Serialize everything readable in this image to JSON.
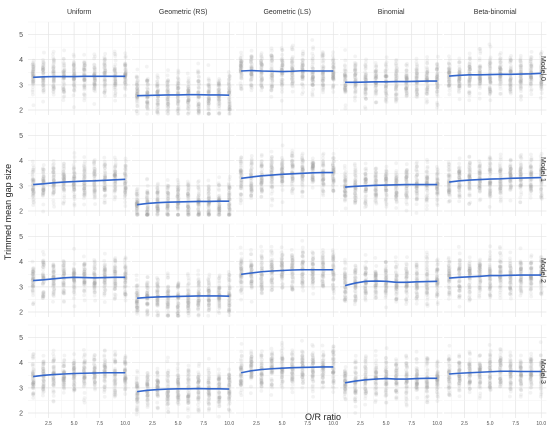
{
  "chart_data": {
    "type": "scatter",
    "layout": "facet-grid",
    "xlabel": "O/R ratio",
    "ylabel": "Trimmed mean gap size",
    "columns": [
      "Uniform",
      "Geometric (RS)",
      "Geometric (LS)",
      "Binomial",
      "Beta-binomial"
    ],
    "rows": [
      "Model 0",
      "Model 1",
      "Model 2",
      "Model 3"
    ],
    "xlim": [
      0.5,
      10.5
    ],
    "xticks": [
      2.5,
      5.0,
      7.5,
      10.0
    ],
    "xtick_labels": [
      "2.5",
      "5.0",
      "7.5",
      "10.0"
    ],
    "ylim": [
      1.8,
      5.5
    ],
    "yticks": [
      2,
      3,
      4,
      5
    ],
    "ytick_labels": [
      "2",
      "3",
      "4",
      "5"
    ],
    "grid": true,
    "points": {
      "color": "#999999",
      "opacity": 0.12,
      "description": "many replicate points at integer O/R ratios 1-10"
    },
    "trend": {
      "color": "#3366cc"
    },
    "x": [
      1,
      2,
      3,
      4,
      5,
      6,
      7,
      8,
      9,
      10
    ],
    "series": [
      {
        "row": "Model 0",
        "column": "Uniform",
        "values": [
          3.3,
          3.32,
          3.33,
          3.33,
          3.33,
          3.34,
          3.34,
          3.34,
          3.34,
          3.34
        ]
      },
      {
        "row": "Model 0",
        "column": "Geometric (RS)",
        "values": [
          2.57,
          2.58,
          2.59,
          2.6,
          2.6,
          2.61,
          2.61,
          2.6,
          2.6,
          2.59
        ]
      },
      {
        "row": "Model 0",
        "column": "Geometric (LS)",
        "values": [
          3.55,
          3.57,
          3.55,
          3.54,
          3.53,
          3.54,
          3.56,
          3.55,
          3.55,
          3.55
        ]
      },
      {
        "row": "Model 0",
        "column": "Binomial",
        "values": [
          3.1,
          3.1,
          3.11,
          3.12,
          3.12,
          3.13,
          3.13,
          3.14,
          3.15,
          3.15
        ]
      },
      {
        "row": "Model 0",
        "column": "Beta-binomial",
        "values": [
          3.35,
          3.38,
          3.4,
          3.4,
          3.41,
          3.42,
          3.42,
          3.43,
          3.44,
          3.46
        ]
      },
      {
        "row": "Model 1",
        "column": "Uniform",
        "values": [
          3.05,
          3.08,
          3.12,
          3.15,
          3.17,
          3.19,
          3.2,
          3.22,
          3.24,
          3.26
        ]
      },
      {
        "row": "Model 1",
        "column": "Geometric (RS)",
        "values": [
          2.25,
          2.3,
          2.33,
          2.35,
          2.36,
          2.37,
          2.38,
          2.38,
          2.39,
          2.39
        ]
      },
      {
        "row": "Model 1",
        "column": "Geometric (LS)",
        "values": [
          3.3,
          3.35,
          3.4,
          3.43,
          3.46,
          3.48,
          3.5,
          3.52,
          3.53,
          3.53
        ]
      },
      {
        "row": "Model 1",
        "column": "Binomial",
        "values": [
          2.95,
          2.98,
          3.0,
          3.02,
          3.03,
          3.04,
          3.05,
          3.05,
          3.05,
          3.05
        ]
      },
      {
        "row": "Model 1",
        "column": "Beta-binomial",
        "values": [
          3.15,
          3.2,
          3.23,
          3.25,
          3.27,
          3.28,
          3.3,
          3.31,
          3.32,
          3.33
        ]
      },
      {
        "row": "Model 2",
        "column": "Uniform",
        "values": [
          3.25,
          3.28,
          3.32,
          3.36,
          3.38,
          3.37,
          3.36,
          3.37,
          3.38,
          3.38
        ]
      },
      {
        "row": "Model 2",
        "column": "Geometric (RS)",
        "values": [
          2.55,
          2.58,
          2.6,
          2.61,
          2.62,
          2.63,
          2.64,
          2.64,
          2.64,
          2.63
        ]
      },
      {
        "row": "Model 2",
        "column": "Geometric (LS)",
        "values": [
          3.5,
          3.55,
          3.6,
          3.63,
          3.65,
          3.67,
          3.68,
          3.68,
          3.68,
          3.68
        ]
      },
      {
        "row": "Model 2",
        "column": "Binomial",
        "values": [
          3.05,
          3.15,
          3.22,
          3.23,
          3.22,
          3.18,
          3.18,
          3.2,
          3.21,
          3.22
        ]
      },
      {
        "row": "Model 2",
        "column": "Beta-binomial",
        "values": [
          3.35,
          3.38,
          3.4,
          3.42,
          3.45,
          3.45,
          3.46,
          3.47,
          3.47,
          3.47
        ]
      },
      {
        "row": "Model 3",
        "column": "Uniform",
        "values": [
          3.45,
          3.5,
          3.53,
          3.55,
          3.57,
          3.58,
          3.59,
          3.6,
          3.6,
          3.6
        ]
      },
      {
        "row": "Model 3",
        "column": "Geometric (RS)",
        "values": [
          2.85,
          2.9,
          2.93,
          2.95,
          2.96,
          2.96,
          2.97,
          2.96,
          2.96,
          2.95
        ]
      },
      {
        "row": "Model 3",
        "column": "Geometric (LS)",
        "values": [
          3.6,
          3.68,
          3.73,
          3.76,
          3.78,
          3.8,
          3.81,
          3.82,
          3.83,
          3.83
        ]
      },
      {
        "row": "Model 3",
        "column": "Binomial",
        "values": [
          3.2,
          3.27,
          3.32,
          3.35,
          3.37,
          3.35,
          3.35,
          3.37,
          3.38,
          3.38
        ]
      },
      {
        "row": "Model 3",
        "column": "Beta-binomial",
        "values": [
          3.55,
          3.58,
          3.6,
          3.62,
          3.64,
          3.66,
          3.66,
          3.65,
          3.65,
          3.65
        ]
      }
    ]
  }
}
